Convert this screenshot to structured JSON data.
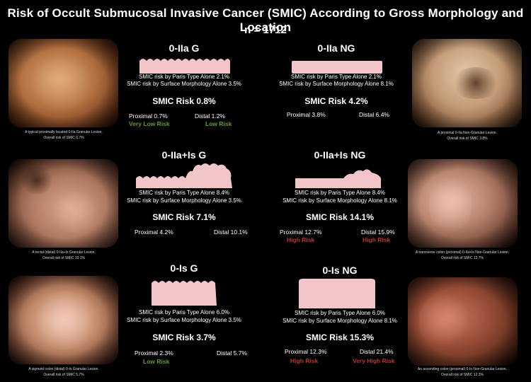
{
  "title": "Risk of Occult Submucosal Invasive Cancer (SMIC) According to Gross Morphology and Location",
  "subtitle": "n = 1712",
  "panels": [
    {
      "title": "0-IIa G",
      "paris": "SMIC risk by Paris Type Alone  2.1%",
      "surface": "SMIC risk by Surface Morphology Alone 3.5%",
      "risk": "SMIC Risk  0.8%",
      "proximal": "Proximal 0.7%",
      "distal": "Distal 1.2%",
      "proximal_label": "Very Low Risk",
      "distal_label": "Low Risk",
      "proximal_color": "#6a9a2e",
      "distal_color": "#6a9a2e"
    },
    {
      "title": "0-IIa NG",
      "paris": "SMIC risk by Paris Type Alone  2.1%",
      "surface": "SMIC risk by Surface Morphology Alone 8.1%",
      "risk": "SMIC Risk  4.2%",
      "proximal": "Proximal 3.8%",
      "distal": "Distal 6.4%",
      "proximal_label": "",
      "distal_label": ""
    },
    {
      "title": "0-IIa+Is G",
      "paris": "SMIC risk by Paris Type Alone  8.4%",
      "surface": "SMIC risk by Surface Morphology Alone 3.5%",
      "risk": "SMIC Risk  7.1%",
      "proximal": "Proximal 4.2%",
      "distal": "Distal 10.1%",
      "proximal_label": "",
      "distal_label": ""
    },
    {
      "title": "0-IIa+Is NG",
      "paris": "SMIC risk by Paris Type Alone  8.4%",
      "surface": "SMIC risk by Surface Morphology Alone 8.1%",
      "risk": "SMIC Risk  14.1%",
      "proximal": "Proximal 12.7%",
      "distal": "Distal 15.9%",
      "proximal_label": "High Risk",
      "distal_label": "High Risk",
      "proximal_color": "#b83a2e",
      "distal_color": "#b83a2e"
    },
    {
      "title": "0-Is G",
      "paris": "SMIC risk by Paris Type Alone  6.0%",
      "surface": "SMIC risk by Surface Morphology Alone 3.5%",
      "risk": "SMIC Risk  3.7%",
      "proximal": "Proximal 2.3%",
      "distal": "Distal 5.7%",
      "proximal_label": "",
      "distal_label": "Low Risk",
      "distal_color": "#6a9a2e"
    },
    {
      "title": "0-Is NG",
      "paris": "SMIC risk by Paris Type Alone  6.0%",
      "surface": "SMIC risk by Surface Morphology Alone 8.1%",
      "risk": "SMIC Risk  15.3%",
      "proximal": "Proximal 12.3%",
      "distal": "Distal 21.4%",
      "proximal_label": "High Risk",
      "distal_label": "Very High Risk",
      "proximal_color": "#b83a2e",
      "distal_color": "#b83a2e"
    }
  ],
  "photos": [
    {
      "line1": "A typical proximally located 0-IIa Granular Lesion.",
      "line2": "Overall risk of SMIC 0.7%"
    },
    {
      "line1": "A proximal 0-IIa Non-Granular Lesion.",
      "line2": "Overall risk of SMIC 3.8%"
    },
    {
      "line1": "A rectal (distal) 0-IIa+Is Granular Lesion.",
      "line2": "Overall risk of SMIC 10.1%"
    },
    {
      "line1": "A transverse colon (proximal) 0-IIa+Is Non-Granular Lesion.",
      "line2": "Overall risk of SMIC 12.7%"
    },
    {
      "line1": "A sigmoid colon (distal) 0-Is Granular Lesion.",
      "line2": "Overall risk of SMIC 5.7%"
    },
    {
      "line1": "An ascending colon (proximal) 0-Is Non-Granular Lesion.",
      "line2": "Overall risk of SMIC 12.3%"
    }
  ]
}
